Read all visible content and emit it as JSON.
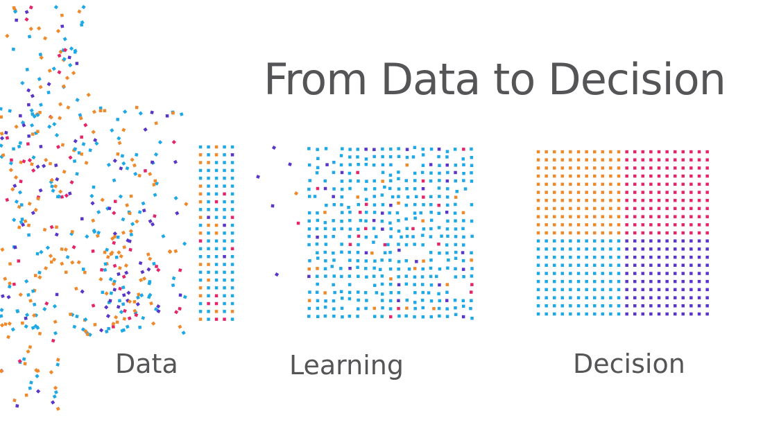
{
  "title": "From Data to Decision",
  "stages": [
    "Data",
    "Learning",
    "Decision"
  ],
  "colors": {
    "blue": "#1fa8e6",
    "orange": "#ee8a2c",
    "magenta": "#e4256a",
    "purple": "#5a35c9",
    "text": "#555558"
  }
}
